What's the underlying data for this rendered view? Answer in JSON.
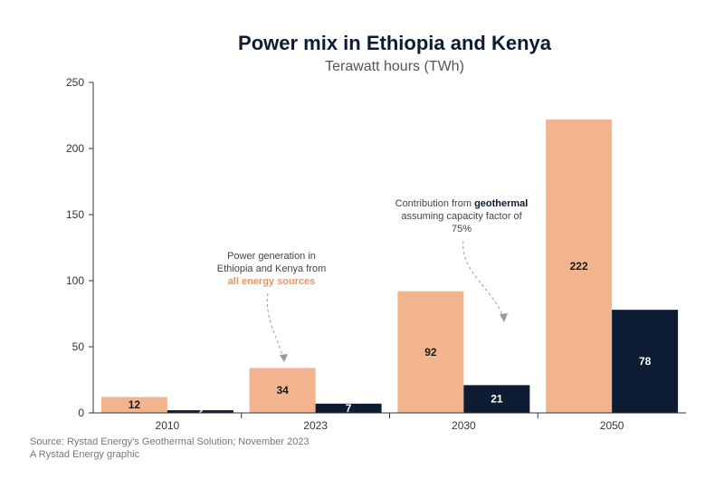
{
  "chart_data": {
    "type": "bar",
    "title": "Power mix in Ethiopia and Kenya",
    "subtitle": "Terawatt hours (TWh)",
    "categories": [
      "2010",
      "2023",
      "2030",
      "2050"
    ],
    "series": [
      {
        "name": "All energy sources",
        "values": [
          12,
          34,
          92,
          222
        ]
      },
      {
        "name": "Geothermal",
        "values": [
          2,
          7,
          21,
          78
        ]
      }
    ],
    "ylim": [
      0,
      250
    ],
    "yticks": [
      "0",
      "50",
      "100",
      "150",
      "200",
      "250"
    ],
    "grid": false,
    "annotations": {
      "all": {
        "line1": "Power generation in",
        "line2": "Ethiopia and Kenya from",
        "highlight": "all energy sources"
      },
      "geo": {
        "prefix": "Contribution from ",
        "highlight": "geothermal",
        "line2": "assuming capacity factor of",
        "line3": "75%"
      }
    },
    "source": "Source: Rystad Energy’s Geothermal Solution; November 2023",
    "credit": "A Rystad Energy graphic"
  },
  "colors": {
    "all": "#f2b48e",
    "geo": "#0d1b33",
    "label_on_light": "#1a1a1a",
    "label_on_dark": "#ffffff"
  }
}
